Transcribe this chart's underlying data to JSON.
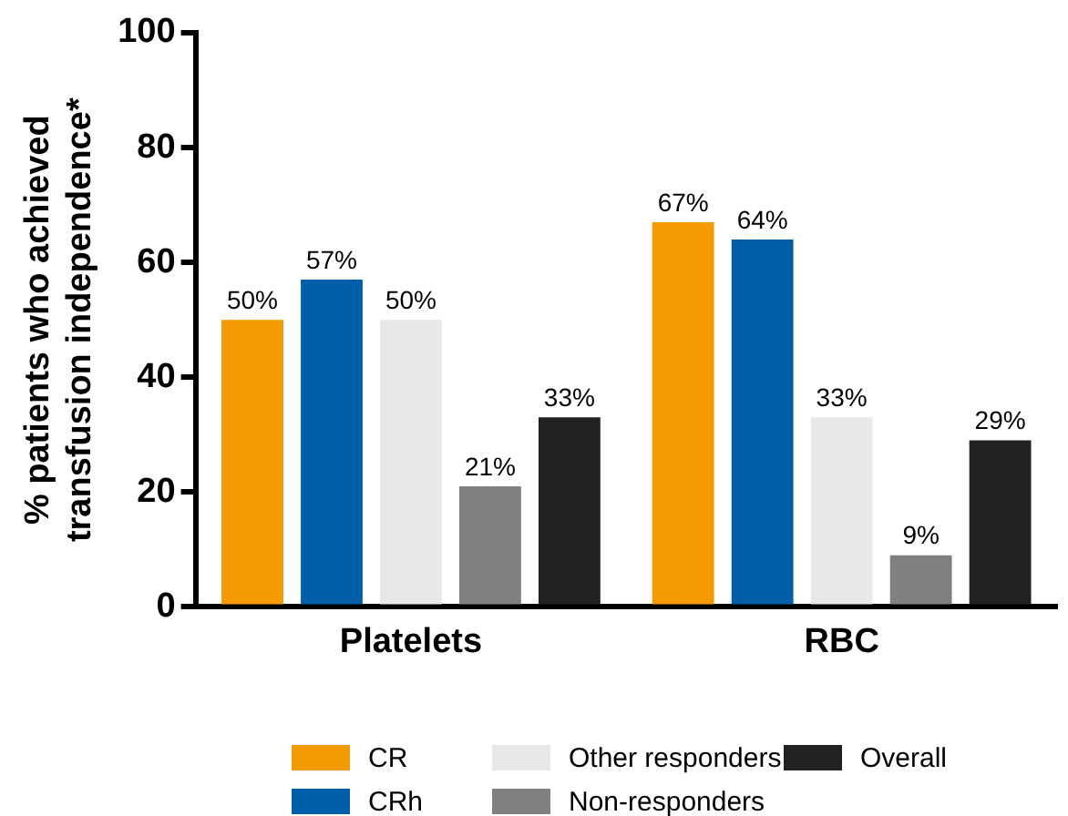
{
  "chart_data": {
    "type": "bar",
    "ylabel": "% patients who achieved transfusion independence*",
    "categories": [
      "Platelets",
      "RBC"
    ],
    "series": [
      {
        "name": "CR",
        "color": "#f59a00",
        "values": [
          50,
          67
        ],
        "value_labels": [
          "50%",
          "67%"
        ]
      },
      {
        "name": "CRh",
        "color": "#005fa8",
        "values": [
          57,
          64
        ],
        "value_labels": [
          "57%",
          "64%"
        ]
      },
      {
        "name": "Other responders",
        "color": "#e8e8e8",
        "values": [
          50,
          33
        ],
        "value_labels": [
          "50%",
          "33%"
        ]
      },
      {
        "name": "Non-responders",
        "color": "#808080",
        "values": [
          21,
          9
        ],
        "value_labels": [
          "21%",
          "9%"
        ]
      },
      {
        "name": "Overall",
        "color": "#222222",
        "values": [
          33,
          29
        ],
        "value_labels": [
          "33%",
          "29%"
        ]
      }
    ],
    "ylim": [
      0,
      100
    ],
    "yticks": [
      0,
      20,
      40,
      60,
      80,
      100
    ],
    "grid": false,
    "legend": "bottom"
  }
}
